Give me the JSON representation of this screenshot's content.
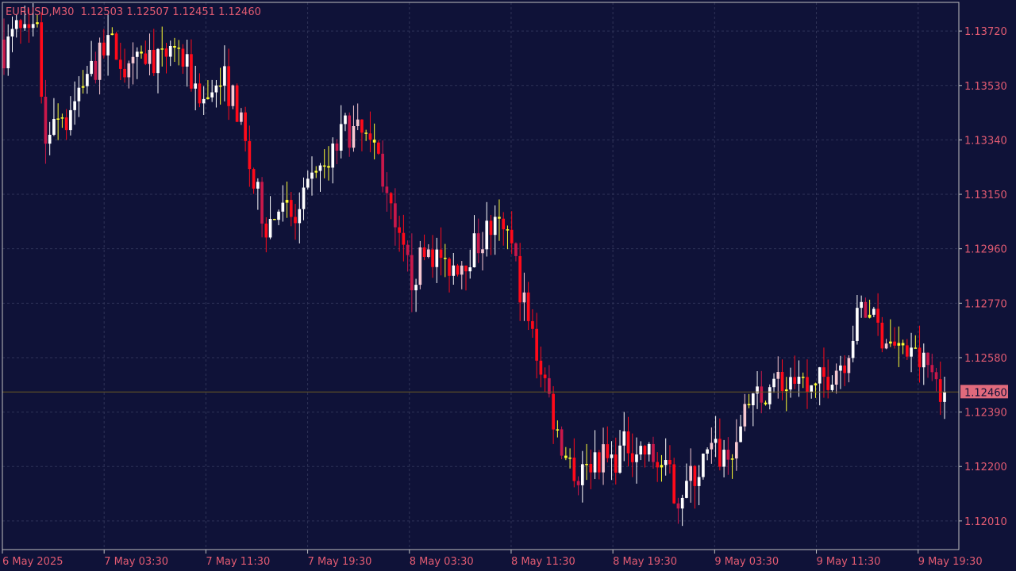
{
  "header": {
    "symbol": "EURUSD,M30",
    "ohlc": "1.12503 1.12507 1.12451 1.12460"
  },
  "colors": {
    "background": "#0f1238",
    "grid": "#2f3357",
    "text": "#e25b72",
    "frame": "#c0c0c0",
    "bull": "#ffffff",
    "bull_alt": "#f6c7d0",
    "bear": "#ff0a1a",
    "bear_alt": "#c9184a",
    "doji": "#ffff33",
    "neutral": "#fde0a0",
    "price_line": "#6b5a24",
    "price_box": "#e06a7c",
    "price_box_text": "#0f1238"
  },
  "chart_data": {
    "type": "candlestick",
    "timeframe": "M30",
    "current_price": 1.1246,
    "ylim": [
      1.1191,
      1.1382
    ],
    "y_ticks": [
      "1.12010",
      "1.12200",
      "1.12390",
      "1.12580",
      "1.12770",
      "1.12960",
      "1.13150",
      "1.13340",
      "1.13530",
      "1.13720"
    ],
    "x_ticks": [
      "6 May 2025",
      "7 May 03:30",
      "7 May 11:30",
      "7 May 19:30",
      "8 May 03:30",
      "8 May 11:30",
      "8 May 19:30",
      "9 May 03:30",
      "9 May 11:30",
      "9 May 19:30"
    ],
    "waypoints": [
      [
        0,
        1.1365
      ],
      [
        3,
        1.1372
      ],
      [
        6,
        1.1368
      ],
      [
        8,
        1.1371
      ],
      [
        10,
        1.1332
      ],
      [
        12,
        1.1345
      ],
      [
        15,
        1.134
      ],
      [
        18,
        1.1352
      ],
      [
        22,
        1.136
      ],
      [
        26,
        1.1368
      ],
      [
        30,
        1.1356
      ],
      [
        34,
        1.1364
      ],
      [
        38,
        1.136
      ],
      [
        40,
        1.1368
      ],
      [
        44,
        1.1358
      ],
      [
        48,
        1.1348
      ],
      [
        52,
        1.1358
      ],
      [
        56,
        1.1345
      ],
      [
        60,
        1.1318
      ],
      [
        63,
        1.1305
      ],
      [
        66,
        1.131
      ],
      [
        70,
        1.1305
      ],
      [
        74,
        1.1318
      ],
      [
        78,
        1.1325
      ],
      [
        82,
        1.1338
      ],
      [
        86,
        1.1335
      ],
      [
        90,
        1.1328
      ],
      [
        94,
        1.13
      ],
      [
        98,
        1.1286
      ],
      [
        102,
        1.1296
      ],
      [
        106,
        1.129
      ],
      [
        110,
        1.1292
      ],
      [
        114,
        1.1298
      ],
      [
        118,
        1.1305
      ],
      [
        122,
        1.1296
      ],
      [
        126,
        1.127
      ],
      [
        130,
        1.125
      ],
      [
        134,
        1.1225
      ],
      [
        138,
        1.1218
      ],
      [
        142,
        1.1224
      ],
      [
        146,
        1.1222
      ],
      [
        150,
        1.1228
      ],
      [
        154,
        1.1225
      ],
      [
        158,
        1.122
      ],
      [
        162,
        1.121
      ],
      [
        166,
        1.1217
      ],
      [
        170,
        1.1225
      ],
      [
        174,
        1.1223
      ],
      [
        178,
        1.1238
      ],
      [
        182,
        1.1245
      ],
      [
        186,
        1.125
      ],
      [
        190,
        1.1246
      ],
      [
        194,
        1.1247
      ],
      [
        198,
        1.1252
      ],
      [
        202,
        1.1258
      ],
      [
        206,
        1.1275
      ],
      [
        210,
        1.1268
      ],
      [
        214,
        1.1262
      ],
      [
        218,
        1.1258
      ],
      [
        222,
        1.1255
      ],
      [
        226,
        1.1246
      ]
    ]
  }
}
